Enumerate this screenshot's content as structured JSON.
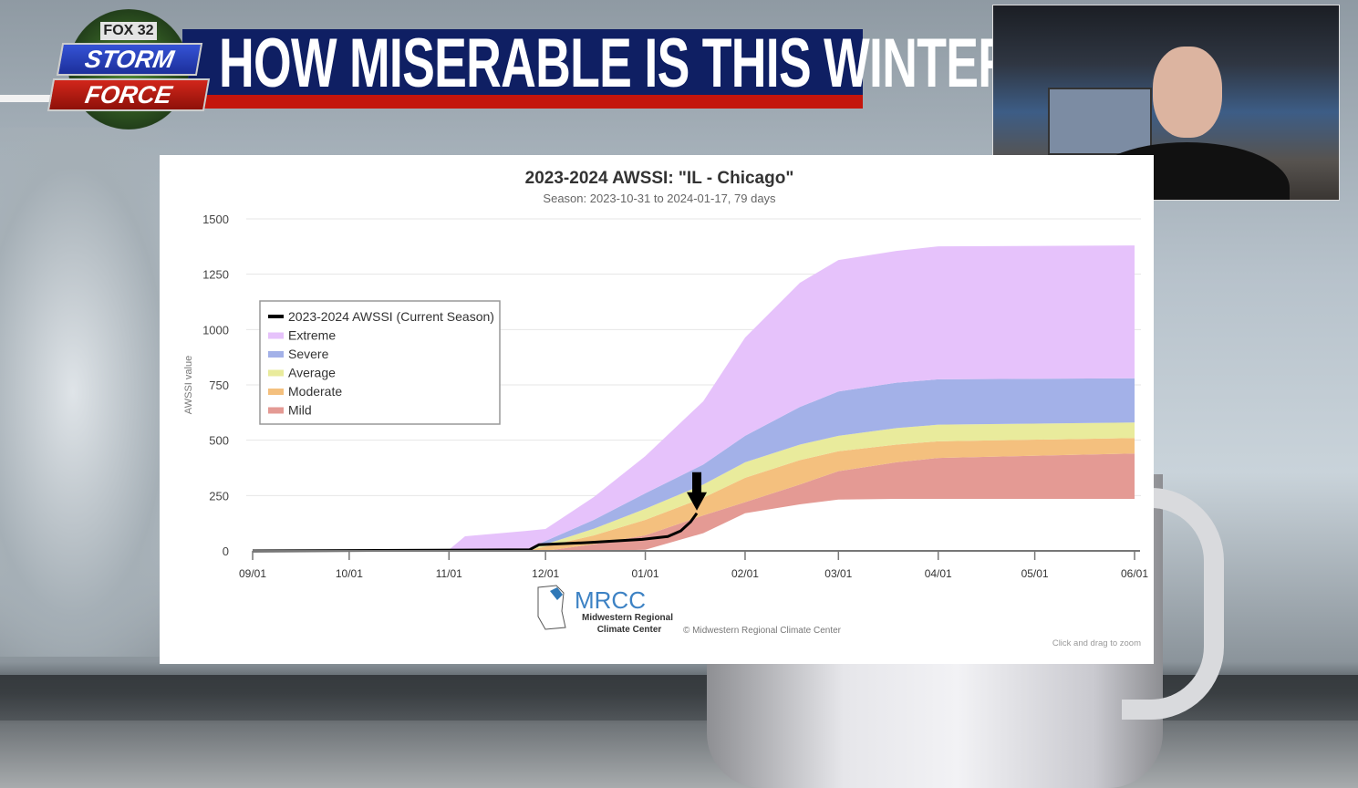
{
  "broadcast": {
    "logo": {
      "line1": "FOX 32",
      "line2": "STORM",
      "line3": "FORCE"
    },
    "headline": "HOW MISERABLE IS THIS WINTER?",
    "colors": {
      "banner": "#0f1f63",
      "stripe": "#c4150c"
    }
  },
  "chart_data": {
    "type": "area",
    "title": "2023-2024 AWSSI: \"IL - Chicago\"",
    "subtitle": "Season: 2023-10-31 to 2024-01-17, 79 days",
    "ylabel": "AWSSI value",
    "xlabel": "",
    "ylim": [
      0,
      1500
    ],
    "yticks": [
      "0",
      "250",
      "500",
      "750",
      "1000",
      "1250",
      "1500"
    ],
    "xlim": [
      "2023-09-01",
      "2024-06-01"
    ],
    "xticks": [
      {
        "date": "2023-09-01",
        "label": "09/01"
      },
      {
        "date": "2023-10-01",
        "label": "10/01"
      },
      {
        "date": "2023-11-01",
        "label": "11/01"
      },
      {
        "date": "2023-12-01",
        "label": "12/01"
      },
      {
        "date": "2024-01-01",
        "label": "01/01"
      },
      {
        "date": "2024-02-01",
        "label": "02/01"
      },
      {
        "date": "2024-03-01",
        "label": "03/01"
      },
      {
        "date": "2024-04-01",
        "label": "04/01"
      },
      {
        "date": "2024-05-01",
        "label": "05/01"
      },
      {
        "date": "2024-06-01",
        "label": "06/01"
      }
    ],
    "grid": true,
    "legend_placement": "left",
    "legend": [
      "2023-2024 AWSSI (Current Season)",
      "Extreme",
      "Severe",
      "Average",
      "Moderate",
      "Mild"
    ],
    "band_dates": [
      "2023-11-01",
      "2023-11-06",
      "2023-11-25",
      "2023-12-01",
      "2023-12-16",
      "2024-01-01",
      "2024-01-19",
      "2024-02-01",
      "2024-02-18",
      "2024-03-01",
      "2024-03-19",
      "2024-04-01",
      "2024-06-01"
    ],
    "bands": [
      {
        "name": "Mild",
        "color": "#e49a94",
        "lower": [
          0,
          0,
          0,
          0,
          0,
          5,
          80,
          170,
          210,
          232,
          235,
          235,
          235
        ],
        "upper": [
          0,
          0,
          0,
          0,
          30,
          70,
          160,
          220,
          300,
          360,
          400,
          420,
          440
        ]
      },
      {
        "name": "Moderate",
        "color": "#f4c07e",
        "lower": [
          0,
          0,
          0,
          0,
          30,
          70,
          160,
          220,
          300,
          360,
          400,
          420,
          440
        ],
        "upper": [
          0,
          0,
          0,
          20,
          70,
          140,
          240,
          330,
          410,
          450,
          480,
          495,
          510
        ]
      },
      {
        "name": "Average",
        "color": "#e9eb9c",
        "lower": [
          0,
          0,
          0,
          20,
          70,
          140,
          240,
          330,
          410,
          450,
          480,
          495,
          510
        ],
        "upper": [
          0,
          0,
          3,
          30,
          100,
          190,
          300,
          400,
          480,
          520,
          555,
          570,
          580
        ]
      },
      {
        "name": "Severe",
        "color": "#a3b1e8",
        "lower": [
          0,
          0,
          3,
          30,
          100,
          190,
          300,
          400,
          480,
          520,
          555,
          570,
          580
        ],
        "upper": [
          0,
          0,
          5,
          45,
          140,
          260,
          390,
          520,
          650,
          720,
          760,
          775,
          780
        ]
      },
      {
        "name": "Extreme",
        "color": "#e6c2fb",
        "lower": [
          0,
          0,
          5,
          45,
          140,
          260,
          390,
          520,
          650,
          720,
          760,
          775,
          780
        ],
        "upper": [
          5,
          66,
          90,
          99,
          243,
          428,
          676,
          964,
          1211,
          1314,
          1355,
          1376,
          1380
        ]
      }
    ],
    "current_season": {
      "name": "2023-2024 AWSSI (Current Season)",
      "color": "#000000",
      "x": [
        "2023-09-01",
        "2023-11-26",
        "2023-11-29",
        "2023-12-15",
        "2023-12-31",
        "2024-01-08",
        "2024-01-12",
        "2024-01-15",
        "2024-01-17"
      ],
      "y": [
        0,
        5,
        28,
        38,
        52,
        65,
        90,
        130,
        170
      ]
    },
    "annotation": {
      "type": "arrow-down",
      "date": "2024-01-17"
    },
    "credit": "© Midwestern Regional Climate Center",
    "hint": "Click and drag to zoom",
    "source_logo": {
      "acronym": "MRCC",
      "line1": "Midwestern Regional",
      "line2": "Climate Center"
    }
  }
}
